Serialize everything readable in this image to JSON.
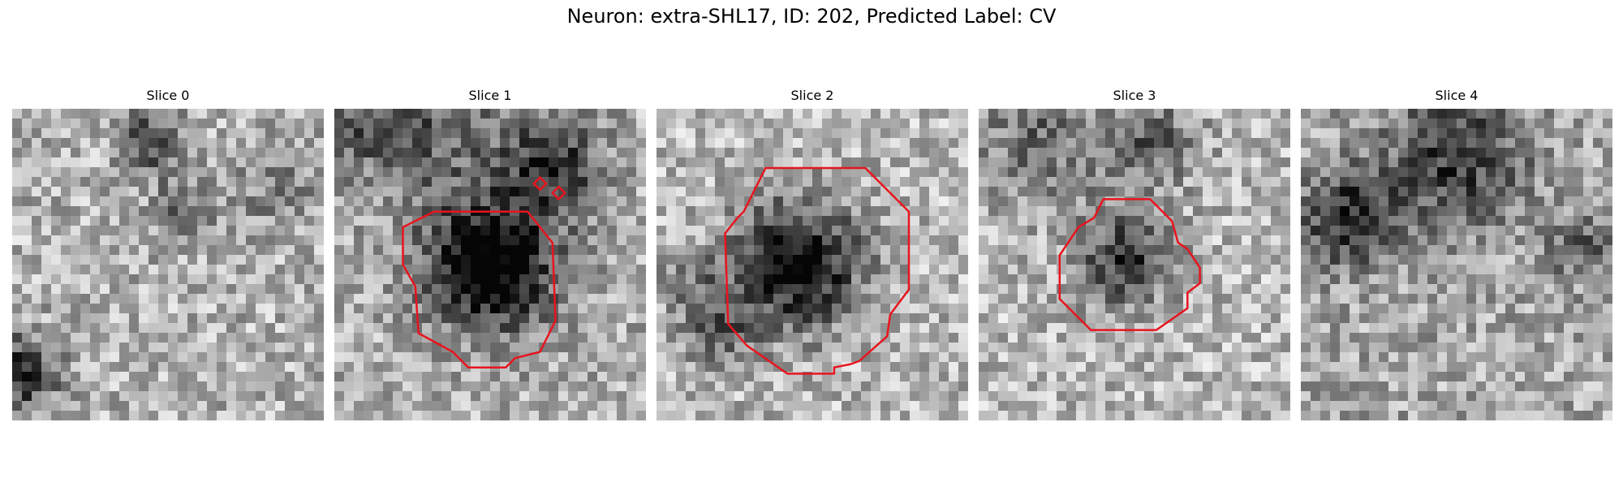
{
  "figure": {
    "title": "Neuron: extra-SHL17, ID: 202, Predicted Label: CV"
  },
  "contour_color": "#e8141e",
  "panels": [
    {
      "title": "Slice 0",
      "grid": {
        "n": 32
      },
      "texture": {
        "base": 0.7,
        "dark_blobs": [
          [
            0.45,
            0.1,
            0.1,
            0.45
          ],
          [
            0.55,
            0.33,
            0.1,
            0.3
          ],
          [
            0.03,
            0.85,
            0.12,
            0.55
          ],
          [
            0.85,
            0.25,
            0.14,
            0.2
          ]
        ]
      },
      "contours": []
    },
    {
      "title": "Slice 1",
      "grid": {
        "n": 32
      },
      "texture": {
        "base": 0.68,
        "dark_blobs": [
          [
            0.5,
            0.5,
            0.2,
            0.85
          ],
          [
            0.7,
            0.18,
            0.16,
            0.5
          ],
          [
            0.3,
            0.05,
            0.25,
            0.3
          ],
          [
            0.1,
            0.05,
            0.15,
            0.2
          ]
        ]
      },
      "contours": [
        [
          [
            0.36,
            0.33
          ],
          [
            0.62,
            0.33
          ],
          [
            0.7,
            0.43
          ],
          [
            0.71,
            0.68
          ],
          [
            0.66,
            0.78
          ],
          [
            0.58,
            0.8
          ],
          [
            0.55,
            0.83
          ],
          [
            0.43,
            0.83
          ],
          [
            0.38,
            0.78
          ],
          [
            0.27,
            0.72
          ],
          [
            0.26,
            0.57
          ],
          [
            0.22,
            0.5
          ],
          [
            0.22,
            0.38
          ],
          [
            0.28,
            0.35
          ],
          [
            0.32,
            0.33
          ]
        ],
        [
          [
            0.66,
            0.22
          ],
          [
            0.68,
            0.24
          ],
          [
            0.66,
            0.26
          ],
          [
            0.64,
            0.24
          ]
        ],
        [
          [
            0.72,
            0.25
          ],
          [
            0.74,
            0.27
          ],
          [
            0.72,
            0.29
          ],
          [
            0.7,
            0.27
          ]
        ]
      ]
    },
    {
      "title": "Slice 2",
      "grid": {
        "n": 32
      },
      "texture": {
        "base": 0.72,
        "dark_blobs": [
          [
            0.45,
            0.5,
            0.2,
            0.75
          ],
          [
            0.1,
            0.55,
            0.1,
            0.2
          ],
          [
            0.2,
            0.7,
            0.12,
            0.3
          ]
        ]
      },
      "contours": [
        [
          [
            0.35,
            0.19
          ],
          [
            0.67,
            0.19
          ],
          [
            0.81,
            0.33
          ],
          [
            0.81,
            0.58
          ],
          [
            0.75,
            0.66
          ],
          [
            0.74,
            0.73
          ],
          [
            0.65,
            0.81
          ],
          [
            0.62,
            0.82
          ],
          [
            0.57,
            0.83
          ],
          [
            0.57,
            0.85
          ],
          [
            0.42,
            0.85
          ],
          [
            0.29,
            0.76
          ],
          [
            0.23,
            0.69
          ],
          [
            0.22,
            0.4
          ],
          [
            0.26,
            0.35
          ],
          [
            0.28,
            0.33
          ]
        ]
      ]
    },
    {
      "title": "Slice 3",
      "grid": {
        "n": 32
      },
      "texture": {
        "base": 0.72,
        "dark_blobs": [
          [
            0.47,
            0.48,
            0.15,
            0.5
          ],
          [
            0.2,
            0.1,
            0.2,
            0.3
          ],
          [
            0.55,
            0.1,
            0.15,
            0.35
          ]
        ]
      },
      "contours": [
        [
          [
            0.4,
            0.29
          ],
          [
            0.55,
            0.29
          ],
          [
            0.62,
            0.36
          ],
          [
            0.64,
            0.43
          ],
          [
            0.67,
            0.45
          ],
          [
            0.71,
            0.51
          ],
          [
            0.71,
            0.56
          ],
          [
            0.67,
            0.59
          ],
          [
            0.67,
            0.64
          ],
          [
            0.57,
            0.71
          ],
          [
            0.36,
            0.71
          ],
          [
            0.26,
            0.61
          ],
          [
            0.26,
            0.47
          ],
          [
            0.32,
            0.38
          ],
          [
            0.37,
            0.35
          ]
        ]
      ]
    },
    {
      "title": "Slice 4",
      "grid": {
        "n": 32
      },
      "texture": {
        "base": 0.66,
        "dark_blobs": [
          [
            0.15,
            0.35,
            0.16,
            0.5
          ],
          [
            0.5,
            0.15,
            0.22,
            0.45
          ],
          [
            0.9,
            0.45,
            0.1,
            0.3
          ]
        ]
      },
      "contours": []
    }
  ]
}
